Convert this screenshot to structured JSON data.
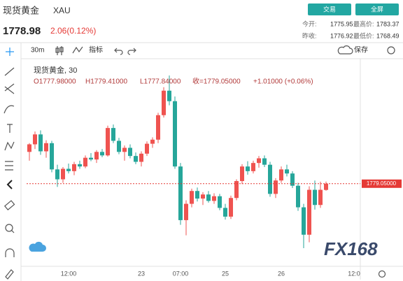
{
  "header": {
    "title": "现货黄金",
    "symbol": "XAU",
    "buttons": [
      "交易",
      "全屏"
    ],
    "price": "1778.98",
    "change": "2.06(0.12%)",
    "stats": [
      [
        "今开:",
        "1775.95",
        "最高价:",
        "1783.37"
      ],
      [
        "昨收:",
        "1776.92",
        "最低价:",
        "1768.49"
      ]
    ]
  },
  "toolbar": {
    "interval": "30m",
    "indicators": "指标",
    "save": "保存"
  },
  "legend": {
    "name": "现货黄金, 30",
    "ohlc": [
      "O1777.98000",
      "H1779.41000",
      "L1777.84000",
      "收=1779.05000",
      "+1.01000 (+0.06%)"
    ]
  },
  "watermark": "FX168",
  "chart_data": {
    "type": "candlestick",
    "ylim": [
      1765,
      1800
    ],
    "up_color": "#ef5350",
    "down_color": "#26a69a",
    "price_line": {
      "value": 1779.05,
      "label": "1779.05000"
    },
    "categories": [
      null,
      null,
      null,
      null,
      null,
      null,
      null,
      "12:00",
      null,
      null,
      null,
      null,
      null,
      null,
      null,
      null,
      null,
      null,
      null,
      null,
      "23",
      null,
      null,
      null,
      null,
      null,
      null,
      "07:00",
      null,
      null,
      null,
      null,
      null,
      null,
      null,
      "25",
      null,
      null,
      null,
      null,
      null,
      null,
      null,
      null,
      null,
      "26",
      null,
      null,
      null,
      null,
      null,
      null,
      null,
      null,
      null,
      null,
      null,
      null,
      "12:0"
    ],
    "open": [
      1784.5,
      1785.8,
      1787.5,
      1784.6,
      1786.0,
      1781.5,
      1779.8,
      1781.6,
      1781.2,
      1782.4,
      1782.0,
      1783.5,
      1783.2,
      1784.5,
      1783.9,
      1788.6,
      1786.4,
      1784.5,
      1785.2,
      1783.8,
      1782.8,
      1784.2,
      1785.9,
      1786.6,
      1790.8,
      1795.0,
      1793.2,
      1782.0,
      1772.8,
      1775.6,
      1777.8,
      1776.5,
      1777.2,
      1776.1,
      1776.9,
      1774.9,
      1773.4,
      1776.6,
      1779.5,
      1782.0,
      1781.2,
      1782.6,
      1783.4,
      1782.3,
      1777.3,
      1779.6,
      1781.5,
      1780.8,
      1778.7,
      1775.0,
      1770.3,
      1778.0,
      1775.4,
      1777.98,
      null,
      null,
      null,
      null,
      null
    ],
    "high": [
      1786.0,
      1788.0,
      1788.2,
      1786.5,
      1786.4,
      1782.3,
      1781.9,
      1782.5,
      1782.8,
      1783.0,
      1783.9,
      1784.3,
      1784.8,
      1785.0,
      1789.0,
      1789.2,
      1786.9,
      1785.6,
      1785.8,
      1784.4,
      1784.6,
      1786.3,
      1787.0,
      1791.2,
      1795.6,
      1797.6,
      1794.0,
      1782.6,
      1776.2,
      1778.2,
      1778.4,
      1777.6,
      1777.8,
      1777.4,
      1777.3,
      1775.6,
      1777.0,
      1779.8,
      1782.4,
      1782.9,
      1783.0,
      1783.8,
      1783.9,
      1782.8,
      1780.0,
      1782.0,
      1782.3,
      1781.2,
      1779.2,
      1775.6,
      1778.6,
      1779.6,
      1779.4,
      1779.41,
      null,
      null,
      null,
      null,
      null
    ],
    "low": [
      1783.0,
      1785.0,
      1784.0,
      1783.5,
      1781.0,
      1778.5,
      1779.2,
      1780.8,
      1780.5,
      1781.6,
      1781.7,
      1782.9,
      1782.6,
      1783.6,
      1783.7,
      1786.0,
      1784.1,
      1783.0,
      1783.4,
      1782.4,
      1782.0,
      1783.8,
      1785.2,
      1786.0,
      1790.4,
      1792.5,
      1781.6,
      1772.0,
      1770.2,
      1775.0,
      1776.0,
      1775.4,
      1775.8,
      1775.6,
      1774.5,
      1772.9,
      1773.0,
      1776.2,
      1779.0,
      1780.6,
      1780.8,
      1781.8,
      1781.9,
      1776.8,
      1776.6,
      1779.2,
      1780.3,
      1778.3,
      1774.4,
      1768.0,
      1769.0,
      1774.6,
      1774.9,
      1777.84,
      null,
      null,
      null,
      null,
      null
    ],
    "close": [
      1785.8,
      1787.5,
      1784.6,
      1786.0,
      1781.5,
      1779.8,
      1781.6,
      1781.2,
      1782.4,
      1782.0,
      1783.5,
      1783.2,
      1784.5,
      1783.9,
      1788.6,
      1786.4,
      1784.5,
      1785.2,
      1783.8,
      1782.8,
      1784.2,
      1785.9,
      1786.6,
      1790.8,
      1795.0,
      1793.2,
      1782.0,
      1772.8,
      1775.6,
      1777.8,
      1776.5,
      1777.2,
      1776.1,
      1776.9,
      1774.9,
      1773.4,
      1776.6,
      1779.5,
      1782.0,
      1781.2,
      1782.6,
      1783.4,
      1782.3,
      1777.3,
      1779.6,
      1781.5,
      1780.8,
      1778.7,
      1775.0,
      1770.3,
      1778.0,
      1775.4,
      1778.0,
      1779.05,
      null,
      null,
      null,
      null,
      null
    ]
  }
}
